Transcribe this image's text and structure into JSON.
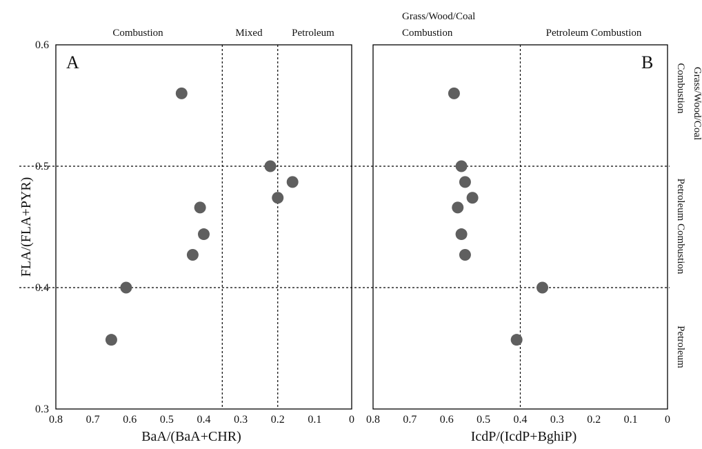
{
  "chart_data": [
    {
      "type": "scatter",
      "panel_label": "A",
      "xlabel": "BaA/(BaA+CHR)",
      "ylabel": "FLA/(FLA+PYR)",
      "xlim": [
        0.8,
        0
      ],
      "ylim": [
        0.3,
        0.6
      ],
      "x_ticks": [
        "0.8",
        "0.7",
        "0.6",
        "0.5",
        "0.4",
        "0.3",
        "0.2",
        "0.1",
        "0"
      ],
      "y_ticks": [
        "0.3",
        "0.4",
        "0.5",
        "0.6"
      ],
      "x_reversed": true,
      "vertical_thresholds": [
        0.35,
        0.2
      ],
      "horizontal_thresholds": [
        0.4,
        0.5
      ],
      "top_regions": [
        "Combustion",
        "Mixed",
        "Petroleum"
      ],
      "points": [
        {
          "x": 0.46,
          "y": 0.56
        },
        {
          "x": 0.22,
          "y": 0.5
        },
        {
          "x": 0.16,
          "y": 0.487
        },
        {
          "x": 0.2,
          "y": 0.474
        },
        {
          "x": 0.41,
          "y": 0.466
        },
        {
          "x": 0.4,
          "y": 0.444
        },
        {
          "x": 0.43,
          "y": 0.427
        },
        {
          "x": 0.61,
          "y": 0.4
        },
        {
          "x": 0.65,
          "y": 0.357
        }
      ]
    },
    {
      "type": "scatter",
      "panel_label": "B",
      "xlabel": "IcdP/(IcdP+BghiP)",
      "xlim": [
        0.8,
        0
      ],
      "ylim": [
        0.3,
        0.6
      ],
      "x_ticks": [
        "0.8",
        "0.7",
        "0.6",
        "0.5",
        "0.4",
        "0.3",
        "0.2",
        "0.1",
        "0"
      ],
      "x_reversed": true,
      "vertical_thresholds": [
        0.4
      ],
      "horizontal_thresholds": [
        0.4,
        0.5
      ],
      "top_regions": [
        "Grass/Wood/Coal Combustion",
        "Petroleum Combustion"
      ],
      "top_regions_lines": [
        [
          "Grass/Wood/Coal",
          "Combustion"
        ],
        [
          "Petroleum Combustion"
        ]
      ],
      "right_regions": [
        "Grass/Wood/Coal Combustion",
        "Petroleum Combustion",
        "Petroleum"
      ],
      "right_regions_lines": [
        [
          "Grass/Wood/Coal",
          "Combustion"
        ],
        [
          "Petroleum Combustion"
        ],
        [
          "Petroleum"
        ]
      ],
      "points": [
        {
          "x": 0.58,
          "y": 0.56
        },
        {
          "x": 0.56,
          "y": 0.5
        },
        {
          "x": 0.55,
          "y": 0.487
        },
        {
          "x": 0.53,
          "y": 0.474
        },
        {
          "x": 0.57,
          "y": 0.466
        },
        {
          "x": 0.56,
          "y": 0.444
        },
        {
          "x": 0.55,
          "y": 0.427
        },
        {
          "x": 0.34,
          "y": 0.4
        },
        {
          "x": 0.41,
          "y": 0.357
        }
      ]
    }
  ]
}
